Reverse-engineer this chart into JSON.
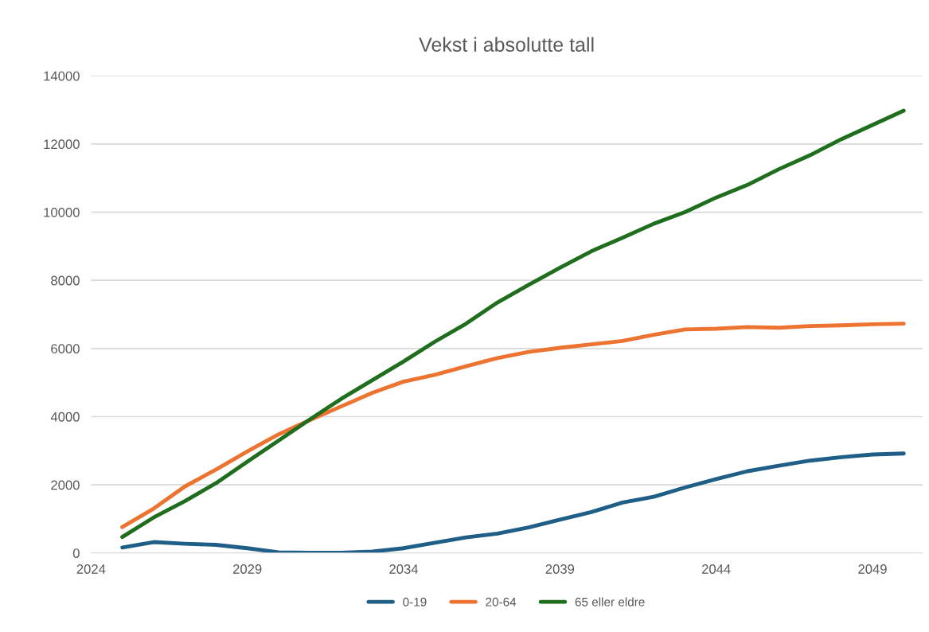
{
  "chart_data": {
    "type": "line",
    "title": "Vekst i absolutte tall",
    "x": [
      2025,
      2026,
      2027,
      2028,
      2029,
      2030,
      2031,
      2032,
      2033,
      2034,
      2035,
      2036,
      2037,
      2038,
      2039,
      2040,
      2041,
      2042,
      2043,
      2044,
      2045,
      2046,
      2047,
      2048,
      2049,
      2050
    ],
    "series": [
      {
        "name": "0-19",
        "color": "#1f5f87",
        "values": [
          160,
          320,
          270,
          240,
          140,
          20,
          10,
          10,
          40,
          140,
          300,
          460,
          570,
          750,
          980,
          1200,
          1480,
          1650,
          1920,
          2170,
          2400,
          2560,
          2710,
          2810,
          2890,
          2920
        ]
      },
      {
        "name": "20-64",
        "color": "#ed7330",
        "values": [
          760,
          1300,
          1950,
          2450,
          2980,
          3480,
          3900,
          4300,
          4700,
          5030,
          5230,
          5480,
          5720,
          5900,
          6020,
          6120,
          6220,
          6400,
          6560,
          6580,
          6630,
          6610,
          6660,
          6680,
          6710,
          6730
        ]
      },
      {
        "name": "65 eller eldre",
        "color": "#1e6e1e",
        "values": [
          470,
          1040,
          1520,
          2050,
          2680,
          3300,
          3920,
          4520,
          5070,
          5620,
          6200,
          6730,
          7350,
          7870,
          8370,
          8850,
          9250,
          9660,
          10000,
          10430,
          10800,
          11260,
          11670,
          12140,
          12560,
          12980
        ]
      }
    ],
    "xlim": [
      2024,
      2050.6
    ],
    "xticks": [
      2024,
      2029,
      2034,
      2039,
      2044,
      2049
    ],
    "ylim": [
      0,
      14000
    ],
    "yticks": [
      0,
      2000,
      4000,
      6000,
      8000,
      10000,
      12000,
      14000
    ],
    "grid": "y",
    "legend": "bottom",
    "marker": "none",
    "line_style": "solid"
  }
}
